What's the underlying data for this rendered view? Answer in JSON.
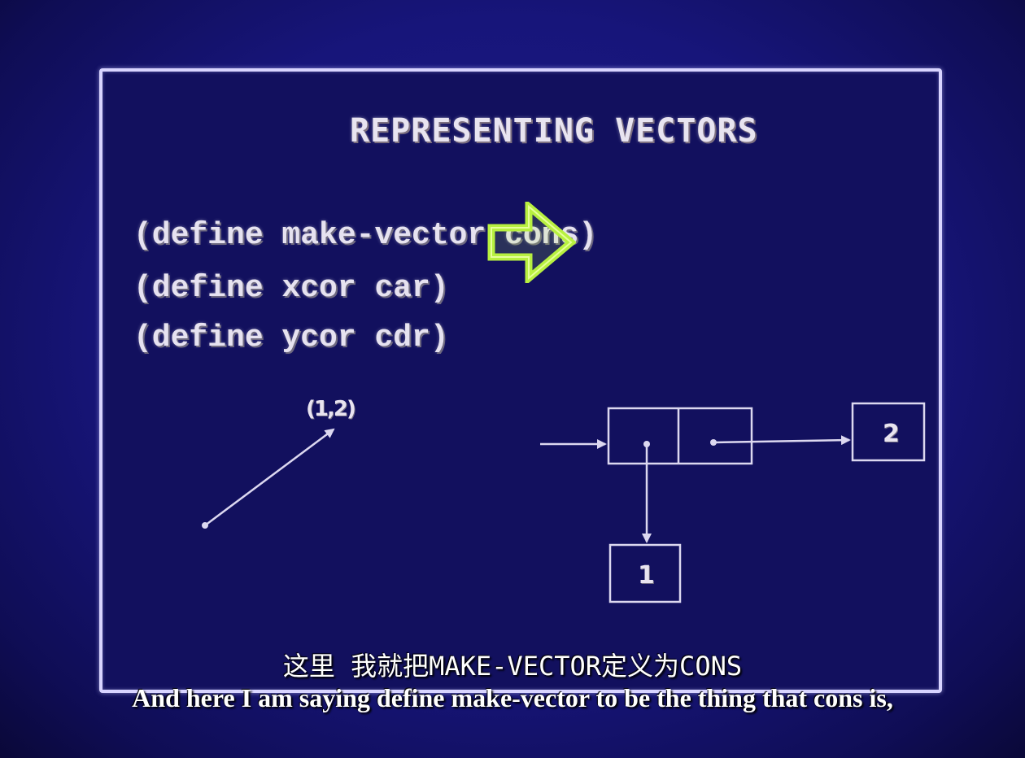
{
  "slide": {
    "title": "REPRESENTING VECTORS",
    "code": [
      "(define make-vector cons)",
      "(define xcor car)",
      "(define ycor cdr)"
    ],
    "vector_label": "(1,2)",
    "car_value": "1",
    "cdr_value": "2",
    "pointer_color": "#b8f040"
  },
  "subtitles": {
    "chinese": "这里 我就把MAKE-VECTOR定义为CONS",
    "english": "And here I am saying define make-vector to be the thing that cons is,"
  },
  "colors": {
    "background": "#17157a",
    "frame": "#d8d4ff",
    "text": "#e8e4f0"
  }
}
